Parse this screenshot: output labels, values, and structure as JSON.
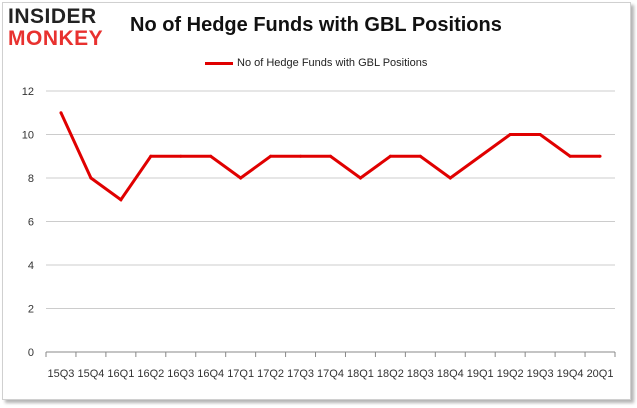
{
  "logo": {
    "line1": "INSIDER",
    "line2": "MONKEY"
  },
  "colors": {
    "series": "#e00000",
    "grid": "#cccccc",
    "axis": "#888888",
    "logo_accent": "#e8312f"
  },
  "chart_data": {
    "type": "line",
    "title": "No of Hedge Funds with GBL Positions",
    "xlabel": "",
    "ylabel": "",
    "ylim": [
      0,
      12
    ],
    "yticks": [
      0,
      2,
      4,
      6,
      8,
      10,
      12
    ],
    "grid": true,
    "legend_position": "top-center",
    "categories": [
      "15Q3",
      "15Q4",
      "16Q1",
      "16Q2",
      "16Q3",
      "16Q4",
      "17Q1",
      "17Q2",
      "17Q3",
      "17Q4",
      "18Q1",
      "18Q2",
      "18Q3",
      "18Q4",
      "19Q1",
      "19Q2",
      "19Q3",
      "19Q4",
      "20Q1"
    ],
    "series": [
      {
        "name": "No of Hedge Funds with GBL Positions",
        "values": [
          11,
          8,
          7,
          9,
          9,
          9,
          8,
          9,
          9,
          9,
          8,
          9,
          9,
          8,
          9,
          10,
          10,
          9,
          9
        ]
      }
    ]
  }
}
